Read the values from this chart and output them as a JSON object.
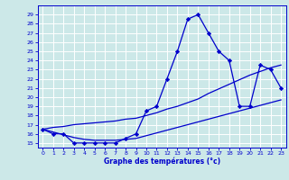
{
  "xlabel": "Graphe des températures (°c)",
  "hours": [
    0,
    1,
    2,
    3,
    4,
    5,
    6,
    7,
    8,
    9,
    10,
    11,
    12,
    13,
    14,
    15,
    16,
    17,
    18,
    19,
    20,
    21,
    22,
    23
  ],
  "temp_curve": [
    16.5,
    16.0,
    16.0,
    15.0,
    15.0,
    15.0,
    15.0,
    15.0,
    15.5,
    16.0,
    18.5,
    19.0,
    22.0,
    25.0,
    28.5,
    29.0,
    27.0,
    25.0,
    24.0,
    19.0,
    19.0,
    23.5,
    23.0,
    21.0
  ],
  "line_low": [
    16.5,
    16.2,
    15.9,
    15.6,
    15.4,
    15.3,
    15.3,
    15.3,
    15.4,
    15.5,
    15.8,
    16.1,
    16.4,
    16.7,
    17.0,
    17.3,
    17.6,
    17.9,
    18.2,
    18.5,
    18.8,
    19.1,
    19.4,
    19.7
  ],
  "line_high": [
    16.5,
    16.7,
    16.8,
    17.0,
    17.1,
    17.2,
    17.3,
    17.4,
    17.6,
    17.7,
    18.0,
    18.3,
    18.7,
    19.0,
    19.4,
    19.8,
    20.4,
    20.9,
    21.4,
    21.9,
    22.4,
    22.8,
    23.2,
    23.5
  ],
  "ylim": [
    14.5,
    30.0
  ],
  "xlim": [
    -0.5,
    23.5
  ],
  "yticks": [
    15,
    16,
    17,
    18,
    19,
    20,
    21,
    22,
    23,
    24,
    25,
    26,
    27,
    28,
    29
  ],
  "ytick_labels": [
    "15",
    "16",
    "17",
    "18",
    "19",
    "20",
    "21",
    "22",
    "23",
    "24",
    "25",
    "26",
    "27",
    "28",
    "29"
  ],
  "xticks": [
    0,
    1,
    2,
    3,
    4,
    5,
    6,
    7,
    8,
    9,
    10,
    11,
    12,
    13,
    14,
    15,
    16,
    17,
    18,
    19,
    20,
    21,
    22,
    23
  ],
  "xtick_labels": [
    "0",
    "1",
    "2",
    "3",
    "4",
    "5",
    "6",
    "7",
    "8",
    "9",
    "10",
    "11",
    "12",
    "13",
    "14",
    "15",
    "16",
    "17",
    "18",
    "19",
    "20",
    "21",
    "22",
    "23"
  ],
  "line_color": "#0000cc",
  "bg_color": "#cce8e8",
  "grid_color": "#ffffff",
  "marker": "D",
  "marker_size": 2.2,
  "line_width": 0.9,
  "tick_fontsize": 4.5,
  "xlabel_fontsize": 5.5
}
